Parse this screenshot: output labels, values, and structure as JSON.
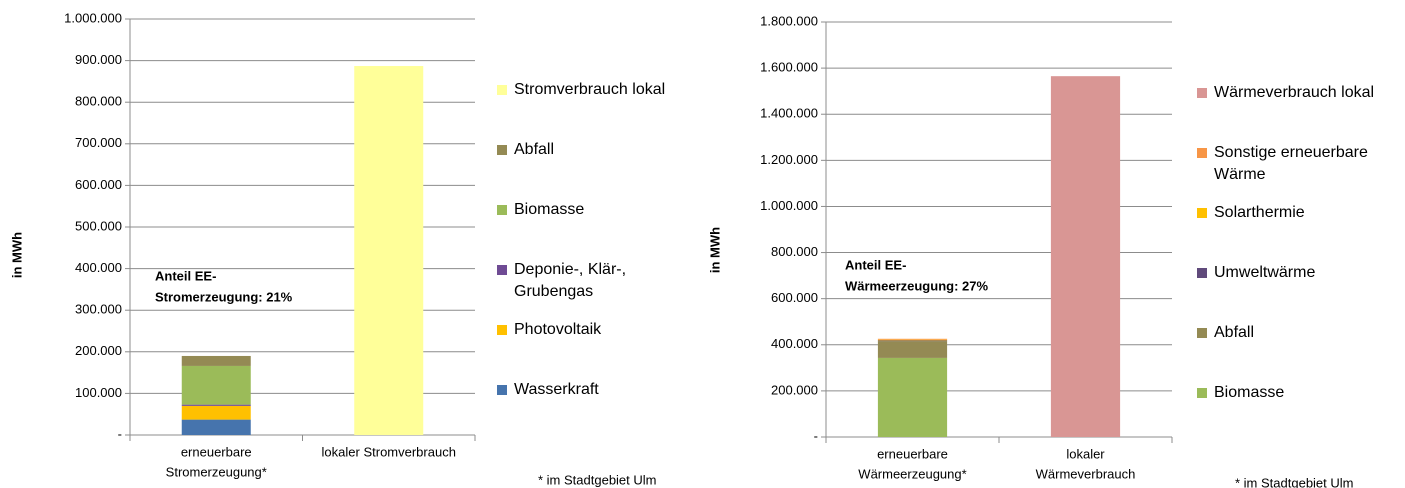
{
  "chart_data": [
    {
      "type": "stacked_bar",
      "ylabel": "in MWh",
      "categories": [
        [
          "erneuerbare",
          "Stromerzeugung*"
        ],
        [
          "lokaler Stromverbrauch"
        ]
      ],
      "series": [
        {
          "name": "Wasserkraft",
          "color": "#4674ad",
          "values": [
            37000,
            null
          ]
        },
        {
          "name": "Photovoltaik",
          "color": "#ffc000",
          "values": [
            33000,
            null
          ]
        },
        {
          "name": "Deponie-, Klär-, Grubengas",
          "color": "#6f4b94",
          "values": [
            3000,
            null
          ]
        },
        {
          "name": "Biomasse",
          "color": "#9bbb59",
          "values": [
            93000,
            null
          ]
        },
        {
          "name": "Abfall",
          "color": "#948a54",
          "values": [
            24000,
            null
          ]
        },
        {
          "name": "Stromverbrauch lokal",
          "color": "#ffff99",
          "values": [
            null,
            887000
          ]
        }
      ],
      "ylim": [
        0,
        1000000
      ],
      "yticks": [
        {
          "value": 0,
          "label": "-"
        },
        {
          "value": 100000,
          "label": "100.000"
        },
        {
          "value": 200000,
          "label": "200.000"
        },
        {
          "value": 300000,
          "label": "300.000"
        },
        {
          "value": 400000,
          "label": "400.000"
        },
        {
          "value": 500000,
          "label": "500.000"
        },
        {
          "value": 600000,
          "label": "600.000"
        },
        {
          "value": 700000,
          "label": "700.000"
        },
        {
          "value": 800000,
          "label": "800.000"
        },
        {
          "value": 900000,
          "label": "900.000"
        },
        {
          "value": 1000000,
          "label": "1.000.000"
        }
      ],
      "grid": true,
      "legend": "right",
      "annotation": [
        "Anteil EE-",
        "Stromerzeugung: 21%"
      ],
      "footnote": "* im Stadtgebiet Ulm"
    },
    {
      "type": "stacked_bar",
      "ylabel": "in MWh",
      "categories": [
        [
          "erneuerbare",
          "Wärmeerzeugung*"
        ],
        [
          "lokaler",
          "Wärmeverbrauch"
        ]
      ],
      "series": [
        {
          "name": "Biomasse",
          "color": "#9bbb59",
          "values": [
            343000,
            null
          ]
        },
        {
          "name": "Abfall",
          "color": "#948a54",
          "values": [
            73000,
            null
          ]
        },
        {
          "name": "Umweltwärme",
          "color": "#604a7b",
          "values": [
            3000,
            null
          ]
        },
        {
          "name": "Solarthermie",
          "color": "#ffc000",
          "values": [
            3000,
            null
          ]
        },
        {
          "name": "Sonstige erneuerbare Wärme",
          "color": "#f79646",
          "values": [
            4000,
            null
          ]
        },
        {
          "name": "Wärmeverbrauch lokal",
          "color": "#d99694",
          "values": [
            null,
            1565000
          ]
        }
      ],
      "ylim": [
        0,
        1800000
      ],
      "yticks": [
        {
          "value": 0,
          "label": "-"
        },
        {
          "value": 200000,
          "label": "200.000"
        },
        {
          "value": 400000,
          "label": "400.000"
        },
        {
          "value": 600000,
          "label": "600.000"
        },
        {
          "value": 800000,
          "label": "800.000"
        },
        {
          "value": 1000000,
          "label": "1.000.000"
        },
        {
          "value": 1200000,
          "label": "1.200.000"
        },
        {
          "value": 1400000,
          "label": "1.400.000"
        },
        {
          "value": 1600000,
          "label": "1.600.000"
        },
        {
          "value": 1800000,
          "label": "1.800.000"
        }
      ],
      "grid": true,
      "legend": "right",
      "annotation": [
        "Anteil EE-",
        "Wärmeerzeugung: 27%"
      ],
      "footnote": "* im Stadtgebiet Ulm"
    }
  ]
}
